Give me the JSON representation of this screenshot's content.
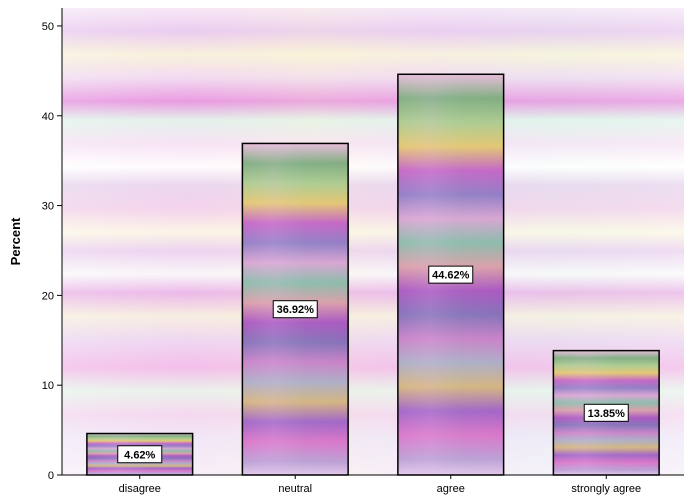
{
  "chart_data": {
    "type": "bar",
    "categories": [
      "disagree",
      "neutral",
      "agree",
      "strongly agree"
    ],
    "values": [
      4.62,
      36.92,
      44.62,
      13.85
    ],
    "data_labels": [
      "4.62%",
      "36.92%",
      "44.62%",
      "13.85%"
    ],
    "title": "",
    "xlabel": "",
    "ylabel": "Percent",
    "ylim": [
      0,
      52
    ],
    "yticks": [
      0,
      10,
      20,
      30,
      40,
      50
    ],
    "grid": false,
    "bar_fill": "multicolor gradient texture",
    "background_fill": "pastel striped texture",
    "colors": {
      "bar_stroke": "#000000",
      "axis": "#000000",
      "label_box": "#ffffff"
    }
  }
}
